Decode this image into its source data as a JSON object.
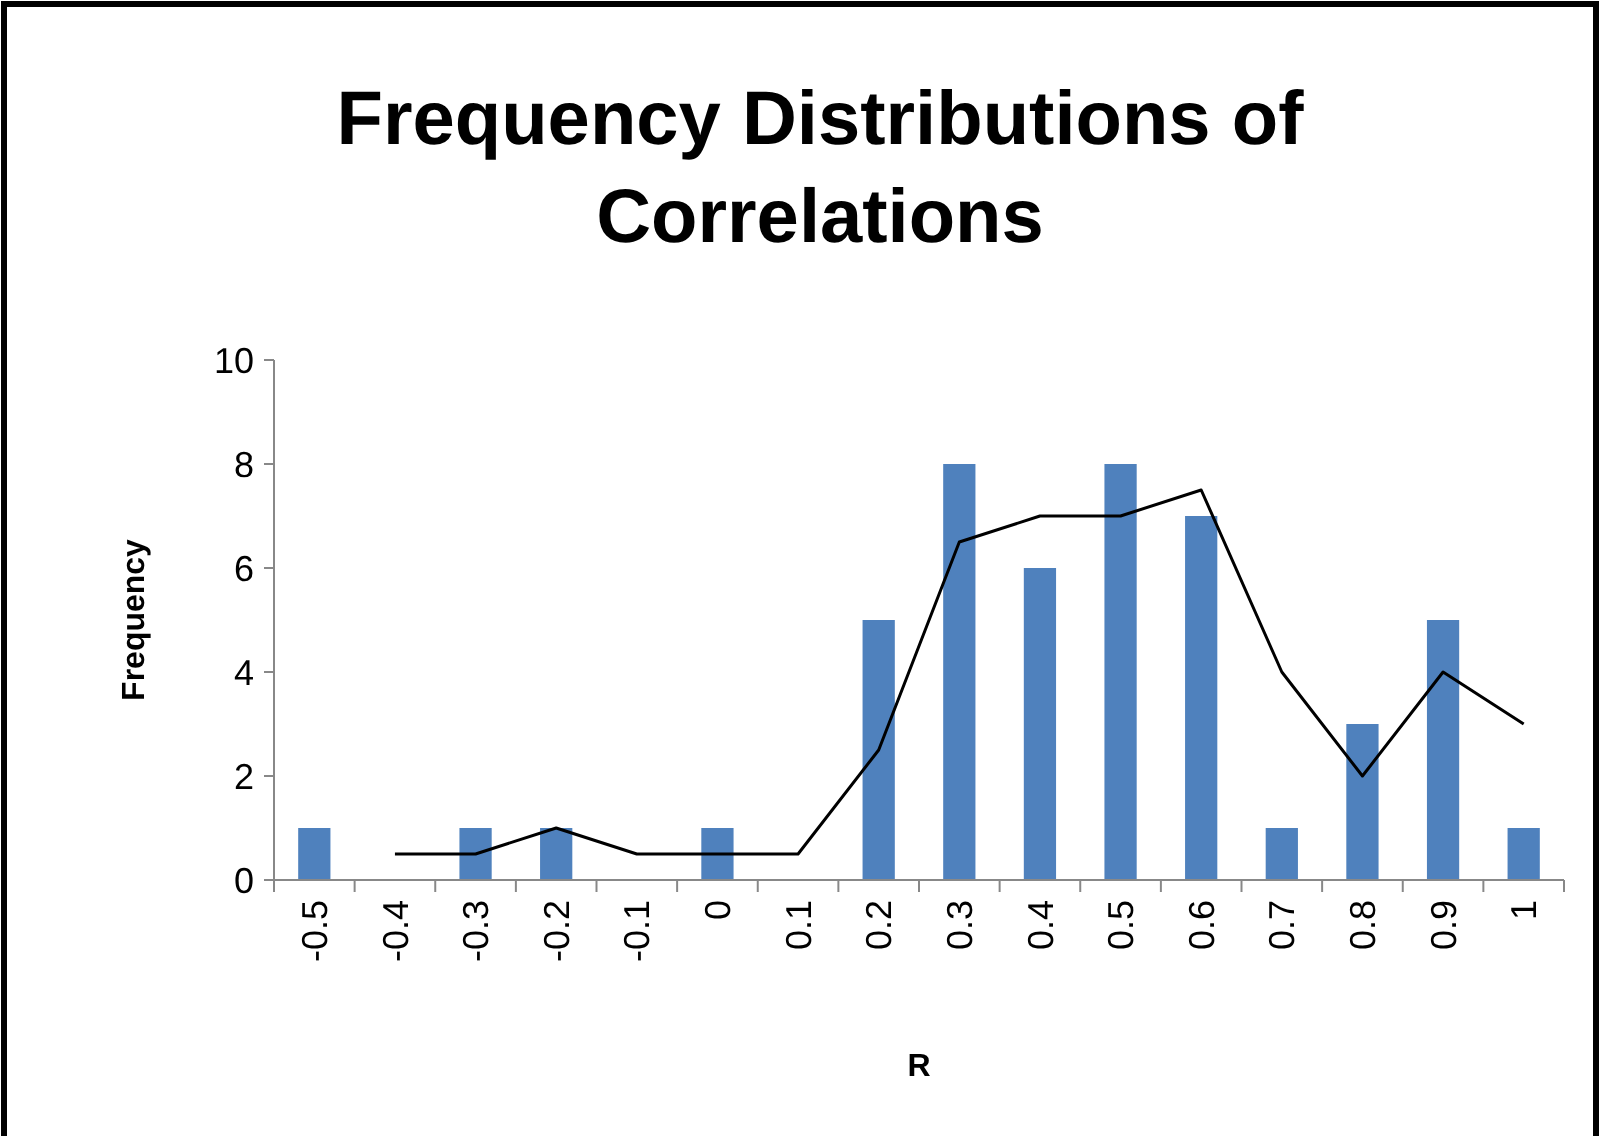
{
  "chart_data": {
    "type": "bar",
    "title": "Frequency Distributions of Correlations",
    "xlabel": "R",
    "ylabel": "Frequency",
    "categories": [
      "-0.5",
      "-0.4",
      "-0.3",
      "-0.2",
      "-0.1",
      "0",
      "0.1",
      "0.2",
      "0.3",
      "0.4",
      "0.5",
      "0.6",
      "0.7",
      "0.8",
      "0.9",
      "1"
    ],
    "series": [
      {
        "color": "#4f81bd",
        "values": [
          1,
          0,
          1,
          1,
          0,
          1,
          0,
          5,
          8,
          6,
          8,
          7,
          1,
          3,
          5,
          1
        ]
      },
      {
        "type": "line",
        "color": "#000000",
        "values": [
          null,
          0.5,
          0.5,
          1,
          0.5,
          0.5,
          0.5,
          2.5,
          6.5,
          7,
          7,
          7.5,
          4,
          2,
          4,
          3
        ]
      }
    ],
    "ylim": [
      0,
      10
    ],
    "yticks": [
      0,
      2,
      4,
      6,
      8,
      10
    ],
    "grid": false
  }
}
